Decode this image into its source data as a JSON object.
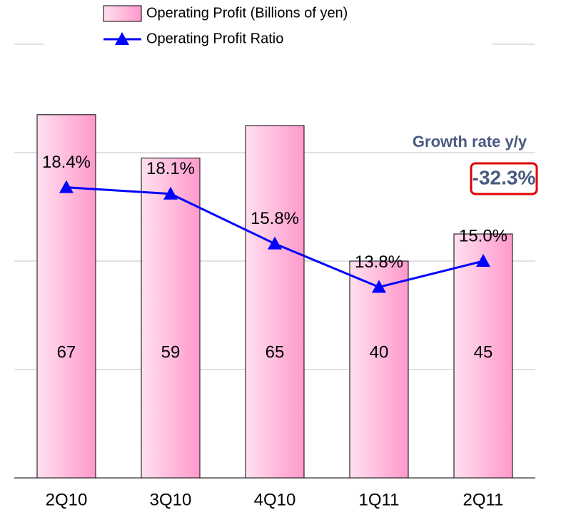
{
  "chart_data": {
    "type": "bar",
    "categories": [
      "2Q10",
      "3Q10",
      "4Q10",
      "1Q11",
      "2Q11"
    ],
    "series": [
      {
        "name": "Operating Profit (Billions of yen)",
        "type": "bar",
        "color": "#ff99cc",
        "values": [
          67,
          59,
          65,
          40,
          45
        ]
      },
      {
        "name": "Operating Profit Ratio",
        "type": "line",
        "axis": "y2",
        "color": "#0000ff",
        "values": [
          18.4,
          18.1,
          15.8,
          13.8,
          15.0
        ],
        "value_labels": [
          "18.4%",
          "18.1%",
          "15.8%",
          "13.8%",
          "15.0%"
        ]
      }
    ],
    "ylim": [
      0,
      80
    ],
    "yticks": [
      0,
      20,
      40,
      60,
      80
    ],
    "y2lim": [
      5,
      25
    ],
    "grid": true,
    "annotations": [
      "Growth rate y/y",
      "-32.3%"
    ]
  }
}
